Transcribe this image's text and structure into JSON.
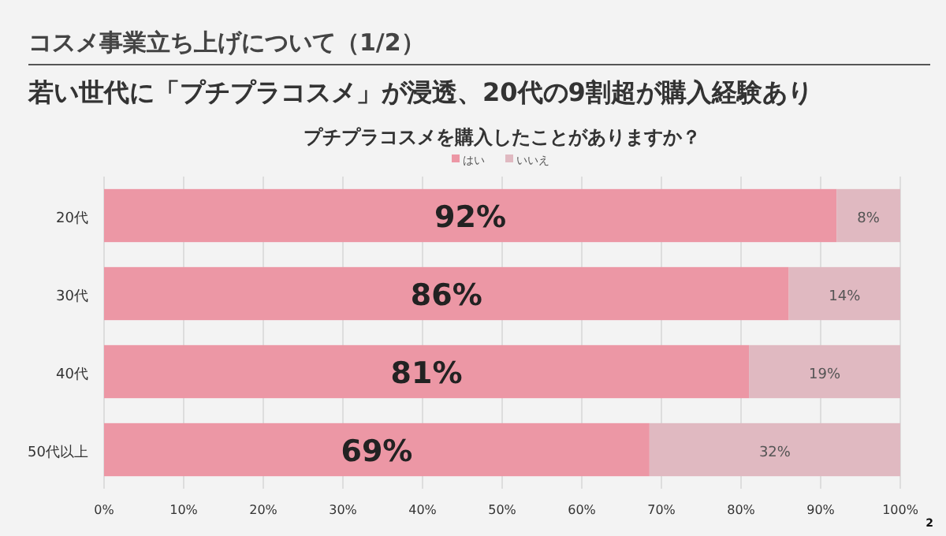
{
  "chart_data": {
    "type": "bar",
    "orientation": "horizontal",
    "stacked": true,
    "title": "コスメ事業立ち上げについて（1/2）",
    "subtitle": "若い世代に「プチプラコスメ」が浸透、20代の9割超が購入経験あり",
    "annotations": [
      "プチプラコスメを購入したことがありますか？",
      "2"
    ],
    "categories": [
      "20代",
      "30代",
      "40代",
      "50代以上"
    ],
    "series": [
      {
        "name": "はい",
        "color": "#ec97a5",
        "values": [
          92,
          86,
          81,
          68.5
        ],
        "value_labels": [
          "92%",
          "86%",
          "81%",
          "69%"
        ]
      },
      {
        "name": "いいえ",
        "color": "#e0b9c1",
        "values": [
          8,
          14,
          19,
          31.5
        ],
        "value_labels": [
          "8%",
          "14%",
          "19%",
          "32%"
        ]
      }
    ],
    "xlim": [
      0,
      100
    ],
    "xticks": [
      {
        "value": 0,
        "label": "0%"
      },
      {
        "value": 10,
        "label": "10%"
      },
      {
        "value": 20,
        "label": "20%"
      },
      {
        "value": 30,
        "label": "30%"
      },
      {
        "value": 40,
        "label": "40%"
      },
      {
        "value": 50,
        "label": "50%"
      },
      {
        "value": 60,
        "label": "60%"
      },
      {
        "value": 70,
        "label": "70%"
      },
      {
        "value": 80,
        "label": "80%"
      },
      {
        "value": 90,
        "label": "90%"
      },
      {
        "value": 100,
        "label": "100%"
      }
    ],
    "grid": "x",
    "legend": "top"
  }
}
